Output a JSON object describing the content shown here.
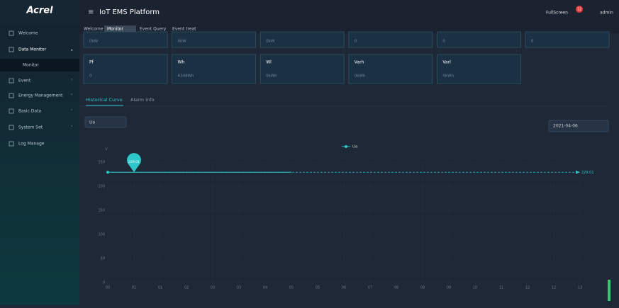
{
  "header": {
    "logo": "Acrel",
    "title": "IoT EMS Platform",
    "fullscreen": "FullScreen",
    "badge": "12",
    "user": "admin"
  },
  "sidebar": {
    "items": [
      "Welcome",
      "Data Monitor",
      "Monitor",
      "Event",
      "Energy Management",
      "Basic Data",
      "System Set",
      "Log Manage"
    ]
  },
  "tabs": [
    "Welcome",
    "Monitor",
    "Event Query",
    "Event treat"
  ],
  "cards_top": [
    "0kW",
    "0kW",
    "0kW",
    "0",
    "0",
    "0"
  ],
  "cards": [
    {
      "label": "Pf",
      "value": "0"
    },
    {
      "label": "Wh",
      "value": "6348Wh"
    },
    {
      "label": "Wl",
      "value": "0kWh"
    },
    {
      "label": "Varh",
      "value": "0kWh"
    },
    {
      "label": "Varl",
      "value": "0kWh"
    }
  ],
  "subtabs": [
    "Historical Curve",
    "Alarm Info"
  ],
  "select": "Ua",
  "date": "2021-04-06",
  "chart_data": {
    "type": "line",
    "y_name": "V",
    "categories": [
      "00",
      "01",
      "01",
      "02",
      "03",
      "03",
      "04",
      "05",
      "05",
      "06",
      "07",
      "08",
      "08",
      "09",
      "10",
      "11",
      "12",
      "12",
      "13"
    ],
    "series": [
      {
        "name": "Ua",
        "color": "#2ec7c9",
        "values": [
          229.01,
          229.01,
          229.01,
          229.01,
          229.01,
          229.01,
          229.01,
          229.01,
          null,
          null,
          null,
          null,
          null,
          null,
          null,
          null,
          null,
          null,
          null
        ]
      }
    ],
    "max_value": 229.01,
    "ylim": [
      0,
      250
    ],
    "yticks": [
      0,
      50,
      100,
      150,
      200,
      250
    ],
    "grid": true
  }
}
